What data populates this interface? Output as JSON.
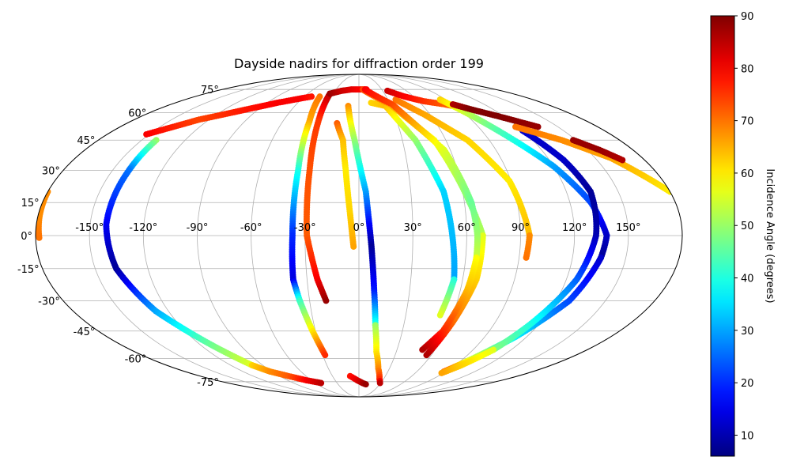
{
  "chart_data": {
    "type": "scatter",
    "projection": "mollweide",
    "title": "Dayside nadirs for diffraction order 199",
    "x_ticks": [
      "-150°",
      "-120°",
      "-90°",
      "-60°",
      "-30°",
      "0°",
      "30°",
      "60°",
      "90°",
      "120°",
      "150°"
    ],
    "y_ticks": [
      "75°",
      "60°",
      "45°",
      "30°",
      "15°",
      "0°",
      "-15°",
      "-30°",
      "-45°",
      "-60°",
      "-75°"
    ],
    "grid": true,
    "colorbar": {
      "label": "Incidence Angle (degrees)",
      "colormap": "jet",
      "range": [
        6,
        90
      ],
      "ticks": [
        "10",
        "20",
        "30",
        "40",
        "50",
        "60",
        "70",
        "80",
        "90"
      ]
    },
    "tracks": [
      {
        "lon": [
          -152,
          -128,
          -100,
          -80,
          -60,
          -52
        ],
        "lat": [
          48,
          56,
          62,
          66,
          69,
          70
        ],
        "inc": [
          80,
          74,
          78,
          80,
          80,
          78
        ]
      },
      {
        "lon": [
          -180,
          -179,
          -178
        ],
        "lat": [
          20,
          8,
          -1
        ],
        "inc": [
          68,
          68,
          70
        ]
      },
      {
        "lon": [
          -140,
          -140,
          -141,
          -138,
          -128,
          -112,
          -100
        ],
        "lat": [
          45,
          30,
          5,
          -15,
          -35,
          -52,
          -64
        ],
        "inc": [
          50,
          26,
          16,
          8,
          30,
          46,
          56
        ]
      },
      {
        "lon": [
          -100,
          -92,
          -80,
          -66,
          -52
        ],
        "lat": [
          -64,
          -68,
          -71,
          -74,
          -76
        ],
        "inc": [
          62,
          68,
          72,
          80,
          85
        ]
      },
      {
        "lon": [
          -43,
          -39,
          -37,
          -37,
          -38,
          -36
        ],
        "lat": [
          70,
          55,
          30,
          0,
          -20,
          -30
        ],
        "inc": [
          70,
          66,
          40,
          20,
          14,
          42
        ]
      },
      {
        "lon": [
          -36,
          -32,
          -28
        ],
        "lat": [
          -30,
          -45,
          -58
        ],
        "inc": [
          42,
          60,
          76
        ]
      },
      {
        "lon": [
          -34,
          -32,
          -30,
          -29,
          -24,
          -20
        ],
        "lat": [
          72,
          55,
          30,
          0,
          -20,
          -30
        ],
        "inc": [
          86,
          75,
          73,
          72,
          80,
          88
        ]
      },
      {
        "lon": [
          -34,
          -22,
          -10,
          0,
          10
        ],
        "lat": [
          72,
          74,
          75,
          75,
          75
        ],
        "inc": [
          88,
          84,
          82,
          80,
          80
        ]
      },
      {
        "lon": [
          -17,
          -11,
          -8,
          -5,
          -3
        ],
        "lat": [
          54,
          45,
          30,
          10,
          -5
        ],
        "inc": [
          72,
          64,
          60,
          62,
          66
        ]
      },
      {
        "lon": [
          -10,
          -3,
          4,
          7,
          9,
          11
        ],
        "lat": [
          64,
          45,
          20,
          -5,
          -25,
          -42
        ],
        "inc": [
          68,
          50,
          30,
          8,
          18,
          40
        ]
      },
      {
        "lon": [
          11,
          14,
          19,
          25,
          29
        ],
        "lat": [
          -42,
          -56,
          -66,
          -73,
          -76
        ],
        "inc": [
          50,
          60,
          68,
          76,
          85
        ]
      },
      {
        "lon": [
          -10,
          -2,
          5,
          10
        ],
        "lat": [
          -71,
          -74,
          -76,
          -77
        ],
        "inc": [
          78,
          82,
          86,
          88
        ]
      },
      {
        "lon": [
          12,
          25,
          39,
          49,
          55
        ],
        "lat": [
          66,
          64,
          45,
          20,
          -20
        ],
        "inc": [
          62,
          64,
          50,
          34,
          30
        ]
      },
      {
        "lon": [
          55,
          52
        ],
        "lat": [
          -20,
          -37
        ],
        "inc": [
          40,
          56
        ]
      },
      {
        "lon": [
          5,
          30,
          52,
          63,
          69
        ],
        "lat": [
          75,
          65,
          45,
          15,
          0
        ],
        "inc": [
          74,
          66,
          58,
          48,
          52
        ]
      },
      {
        "lon": [
          69,
          68,
          62,
          56
        ],
        "lat": [
          0,
          -20,
          -40,
          -58
        ],
        "inc": [
          56,
          62,
          70,
          86
        ]
      },
      {
        "lon": [
          8,
          32,
          56,
          64,
          66,
          66
        ],
        "lat": [
          75,
          65,
          40,
          15,
          0,
          -10
        ],
        "inc": [
          80,
          74,
          56,
          46,
          50,
          54
        ]
      },
      {
        "lon": [
          66,
          64,
          58,
          50
        ],
        "lat": [
          -10,
          -25,
          -45,
          -55
        ],
        "inc": [
          58,
          64,
          76,
          86
        ]
      },
      {
        "lon": [
          38,
          55,
          75,
          89,
          95
        ],
        "lat": [
          68,
          59,
          45,
          25,
          0
        ],
        "inc": [
          70,
          66,
          62,
          60,
          64
        ]
      },
      {
        "lon": [
          95,
          94
        ],
        "lat": [
          0,
          -10
        ],
        "inc": [
          68,
          70
        ]
      },
      {
        "lon": [
          36,
          50,
          65,
          82,
          100
        ],
        "lat": [
          74,
          70,
          67,
          65,
          62
        ],
        "inc": [
          84,
          80,
          76,
          72,
          70
        ]
      },
      {
        "lon": [
          84,
          100,
          120,
          132,
          138,
          136
        ],
        "lat": [
          68,
          52,
          32,
          15,
          0,
          -10
        ],
        "inc": [
          62,
          46,
          30,
          22,
          12,
          8
        ]
      },
      {
        "lon": [
          136,
          128,
          112,
          98,
          88
        ],
        "lat": [
          -10,
          -30,
          -48,
          -60,
          -68
        ],
        "inc": [
          12,
          22,
          36,
          54,
          72
        ]
      },
      {
        "lon": [
          120,
          129,
          134,
          132,
          126,
          114,
          106
        ],
        "lat": [
          50,
          35,
          20,
          0,
          -20,
          -42,
          -55
        ],
        "inc": [
          12,
          12,
          8,
          10,
          24,
          40,
          48
        ]
      },
      {
        "lon": [
          106,
          96,
          88
        ],
        "lat": [
          -55,
          -64,
          -69
        ],
        "inc": [
          56,
          62,
          66
        ]
      },
      {
        "lon": [
          90,
          100,
          115,
          135
        ],
        "lat": [
          65,
          62,
          58,
          52
        ],
        "inc": [
          86,
          90,
          90,
          88
        ]
      },
      {
        "lon": [
          118,
          140,
          160,
          180
        ],
        "lat": [
          52,
          45,
          36,
          20
        ],
        "inc": [
          70,
          68,
          66,
          60
        ]
      },
      {
        "lon": [
          148,
          158,
          166
        ],
        "lat": [
          45,
          40,
          35
        ],
        "inc": [
          88,
          88,
          86
        ]
      }
    ]
  }
}
